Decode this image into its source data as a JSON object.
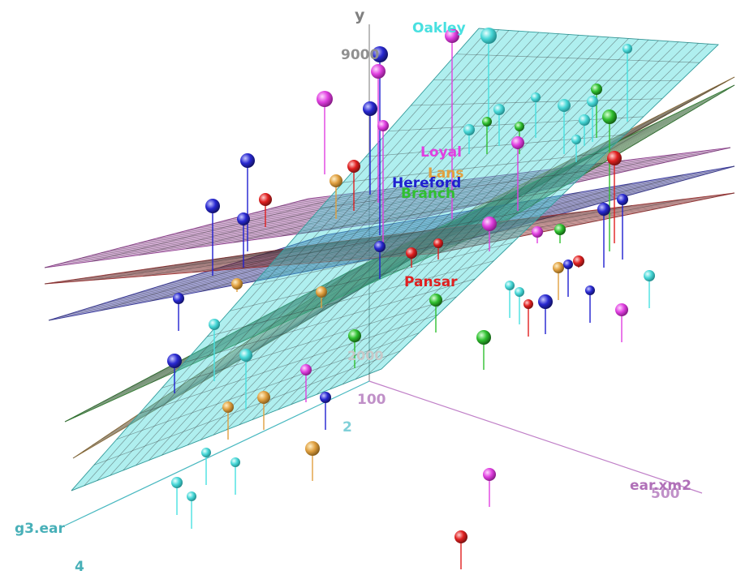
{
  "chart_data": {
    "type": "scatter",
    "dimension": "3d",
    "title": "",
    "axes": {
      "x": {
        "label": "ear.xm2",
        "ticks": [
          "100",
          "500"
        ],
        "color": "#b070b8"
      },
      "y": {
        "label": "y",
        "ticks": [
          "9000",
          "2000"
        ],
        "color": "#808080"
      },
      "z": {
        "label": "g3.ear",
        "ticks": [
          "2",
          "4"
        ],
        "color": "#48b8c0"
      }
    },
    "series": [
      {
        "name": "Oakley",
        "color": "#48e0e0",
        "plane_color": "#40d8d8"
      },
      {
        "name": "Loyal",
        "color": "#e040e0",
        "plane_color": "#c050c0"
      },
      {
        "name": "Lans",
        "color": "#e0a040",
        "plane_color": "#c09040"
      },
      {
        "name": "Hereford",
        "color": "#2020d0",
        "plane_color": "#3838c8"
      },
      {
        "name": "Branch",
        "color": "#30c030",
        "plane_color": "#30a030"
      },
      {
        "name": "Pansar",
        "color": "#e02020",
        "plane_color": "#d03030"
      }
    ],
    "grid": true,
    "legend": "none"
  }
}
